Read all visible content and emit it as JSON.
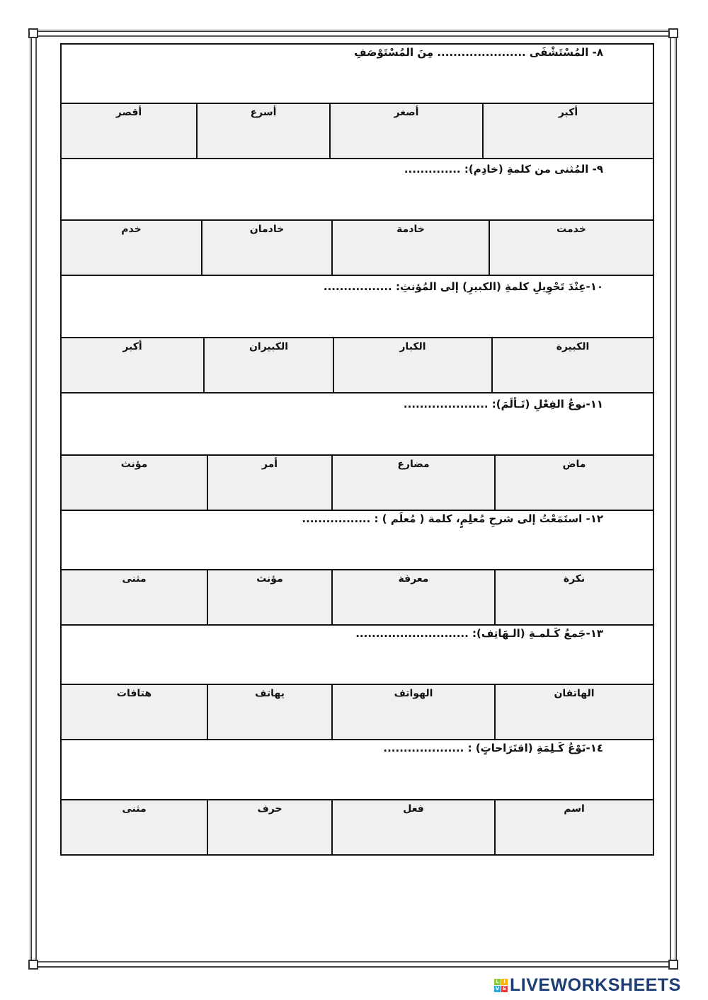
{
  "questions": [
    {
      "text": "٨-  المُسْتَشْفَى ...................... مِنَ المُسْتَوْصَفِ",
      "options": [
        "أكبر",
        "أصغر",
        "أسرع",
        "أقصر"
      ]
    },
    {
      "text": "٩-  المُثنى من كلمةِ (خادِم): ..............",
      "options": [
        "خدمت",
        "خادمة",
        "خادمان",
        "خدم"
      ]
    },
    {
      "text": "١٠-عِنْدَ تَحْوِيلِ كلمةِ (الكبيرِ) إلى المُؤنثِ: .................",
      "options": [
        "الكبيرة",
        "الكبار",
        "الكبيران",
        "أكبر"
      ]
    },
    {
      "text": "١١-نوعُ الفِعْلِ (تَـألَمَ): .....................",
      "options": [
        "ماض",
        "مضارع",
        "أمر",
        "مؤنث"
      ]
    },
    {
      "text": "١٢- استَمَعْتُ إلى شرحِ مُعلِمٍ، كلمة ( مُعلَم ) : .................",
      "options": [
        "نكرة",
        "معرفة",
        "مؤنث",
        "مثنى"
      ]
    },
    {
      "text": "١٣-جَمعُ كَـلمـةِ (الـهَاتِف): ............................",
      "options": [
        "الهاتفان",
        "الهواتف",
        "يهاتف",
        "هتافات"
      ]
    },
    {
      "text": "١٤-نَوْعُ كَـلِمَةِ (اقتَرَاحاتٍ) : ....................",
      "options": [
        "اسم",
        "فعل",
        "حرف",
        "مثنى"
      ]
    }
  ],
  "footer": {
    "brand": "LIVEWORKSHEETS",
    "brand_mark": [
      "L",
      "I",
      "V",
      "E"
    ]
  },
  "colors": {
    "option_bg": "#f0f0f0",
    "brand": "#1e3d73"
  }
}
